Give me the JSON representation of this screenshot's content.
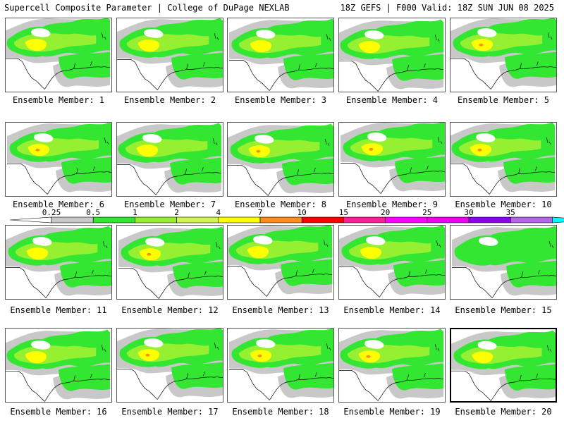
{
  "header": {
    "title": "Supercell Composite Parameter | College of DuPage NEXLAB",
    "run_info": "18Z GEFS | F000 Valid: 18Z SUN JUN 08 2025"
  },
  "member_label_prefix": "Ensemble Member:",
  "selected_member": 20,
  "members": [
    {
      "label": "Ensemble Member: 1",
      "max_class": 4
    },
    {
      "label": "Ensemble Member: 2",
      "max_class": 4
    },
    {
      "label": "Ensemble Member: 3",
      "max_class": 4
    },
    {
      "label": "Ensemble Member: 4",
      "max_class": 4
    },
    {
      "label": "Ensemble Member: 5",
      "max_class": 7
    },
    {
      "label": "Ensemble Member: 6",
      "max_class": 7
    },
    {
      "label": "Ensemble Member: 7",
      "max_class": 4
    },
    {
      "label": "Ensemble Member: 8",
      "max_class": 7
    },
    {
      "label": "Ensemble Member: 9",
      "max_class": 7
    },
    {
      "label": "Ensemble Member: 10",
      "max_class": 7
    },
    {
      "label": "Ensemble Member: 11",
      "max_class": 4
    },
    {
      "label": "Ensemble Member: 12",
      "max_class": 7
    },
    {
      "label": "Ensemble Member: 13",
      "max_class": 4
    },
    {
      "label": "Ensemble Member: 14",
      "max_class": 4
    },
    {
      "label": "Ensemble Member: 15",
      "max_class": 2
    },
    {
      "label": "Ensemble Member: 16",
      "max_class": 4
    },
    {
      "label": "Ensemble Member: 17",
      "max_class": 7
    },
    {
      "label": "Ensemble Member: 18",
      "max_class": 7
    },
    {
      "label": "Ensemble Member: 19",
      "max_class": 7
    },
    {
      "label": "Ensemble Member: 20",
      "max_class": 4
    }
  ],
  "colorbar": {
    "labels": [
      "0.25",
      "0.5",
      "1",
      "2",
      "4",
      "7",
      "10",
      "15",
      "20",
      "25",
      "30",
      "35"
    ],
    "colors": [
      "#c8c8c8",
      "#32e632",
      "#96f032",
      "#d2f550",
      "#ffff00",
      "#ff8c1e",
      "#ff0000",
      "#ff1e96",
      "#ff00ff",
      "#f000f0",
      "#8c00f0",
      "#b464e6",
      "#00ffff"
    ]
  }
}
